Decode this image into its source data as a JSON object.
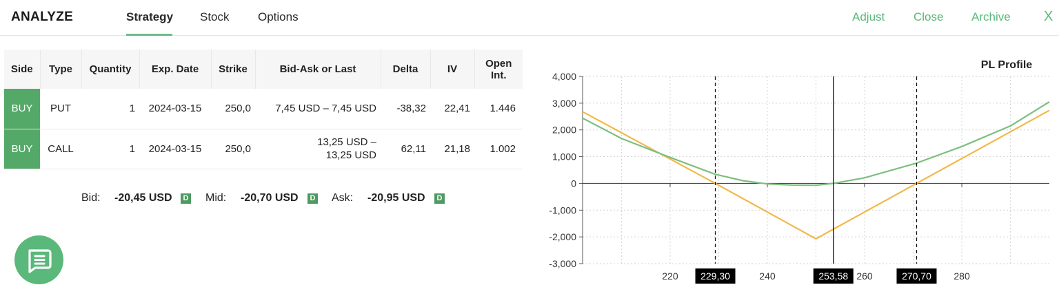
{
  "header": {
    "title": "ANALYZE",
    "tabs": [
      {
        "label": "Strategy",
        "active": true
      },
      {
        "label": "Stock",
        "active": false
      },
      {
        "label": "Options",
        "active": false
      }
    ],
    "actions": [
      "Adjust",
      "Close",
      "Archive"
    ],
    "close_glyph": "X",
    "accent_color": "#5cb87a"
  },
  "table": {
    "columns": [
      "Side",
      "Type",
      "Quantity",
      "Exp. Date",
      "Strike",
      "Bid-Ask or Last",
      "Delta",
      "IV",
      "Open Int."
    ],
    "rows": [
      {
        "side": "BUY",
        "type": "PUT",
        "quantity": "1",
        "exp_date": "2024-03-15",
        "strike": "250,0",
        "bid_ask": "7,45 USD – 7,45 USD",
        "delta": "-38,32",
        "iv": "22,41",
        "open_int": "1.446"
      },
      {
        "side": "BUY",
        "type": "CALL",
        "quantity": "1",
        "exp_date": "2024-03-15",
        "strike": "250,0",
        "bid_ask": "13,25 USD – 13,25 USD",
        "delta": "62,11",
        "iv": "21,18",
        "open_int": "1.002"
      }
    ],
    "buy_color": "#55a968"
  },
  "summary": {
    "bid_label": "Bid:",
    "bid_value": "-20,45 USD",
    "mid_label": "Mid:",
    "mid_value": "-20,70 USD",
    "ask_label": "Ask:",
    "ask_value": "-20,95 USD",
    "badge": "D"
  },
  "fab": {
    "icon": "chat-icon"
  },
  "chart_data": {
    "type": "line",
    "title": "PL Profile",
    "xlabel": "",
    "ylabel": "",
    "xlim": [
      202,
      298
    ],
    "ylim": [
      -3000,
      4000
    ],
    "x_ticks": [
      220,
      240,
      260,
      280
    ],
    "y_ticks": [
      4000,
      3000,
      2000,
      1000,
      0,
      -1000,
      -2000,
      -3000
    ],
    "y_tick_labels": [
      "4,000",
      "3,000",
      "2,000",
      "1,000",
      "0",
      "-1,000",
      "-2,000",
      "-3,000"
    ],
    "grid": true,
    "series": [
      {
        "color": "#f2b84b",
        "x": [
          202,
          229.3,
          250,
          270.7,
          298
        ],
        "y": [
          2680,
          0,
          -2070,
          0,
          2730
        ]
      },
      {
        "color": "#7cbf7f",
        "x": [
          202,
          210,
          220,
          229.3,
          235,
          240,
          245,
          250,
          253.58,
          260,
          270.7,
          280,
          290,
          298
        ],
        "y": [
          2440,
          1680,
          970,
          340,
          100,
          -20,
          -60,
          -70,
          0,
          210,
          760,
          1380,
          2150,
          3050
        ]
      }
    ],
    "markers": [
      {
        "x": 229.3,
        "label": "229,30",
        "style": "dashed"
      },
      {
        "x": 253.58,
        "label": "253,58",
        "style": "solid"
      },
      {
        "x": 270.7,
        "label": "270,70",
        "style": "dashed"
      }
    ]
  }
}
